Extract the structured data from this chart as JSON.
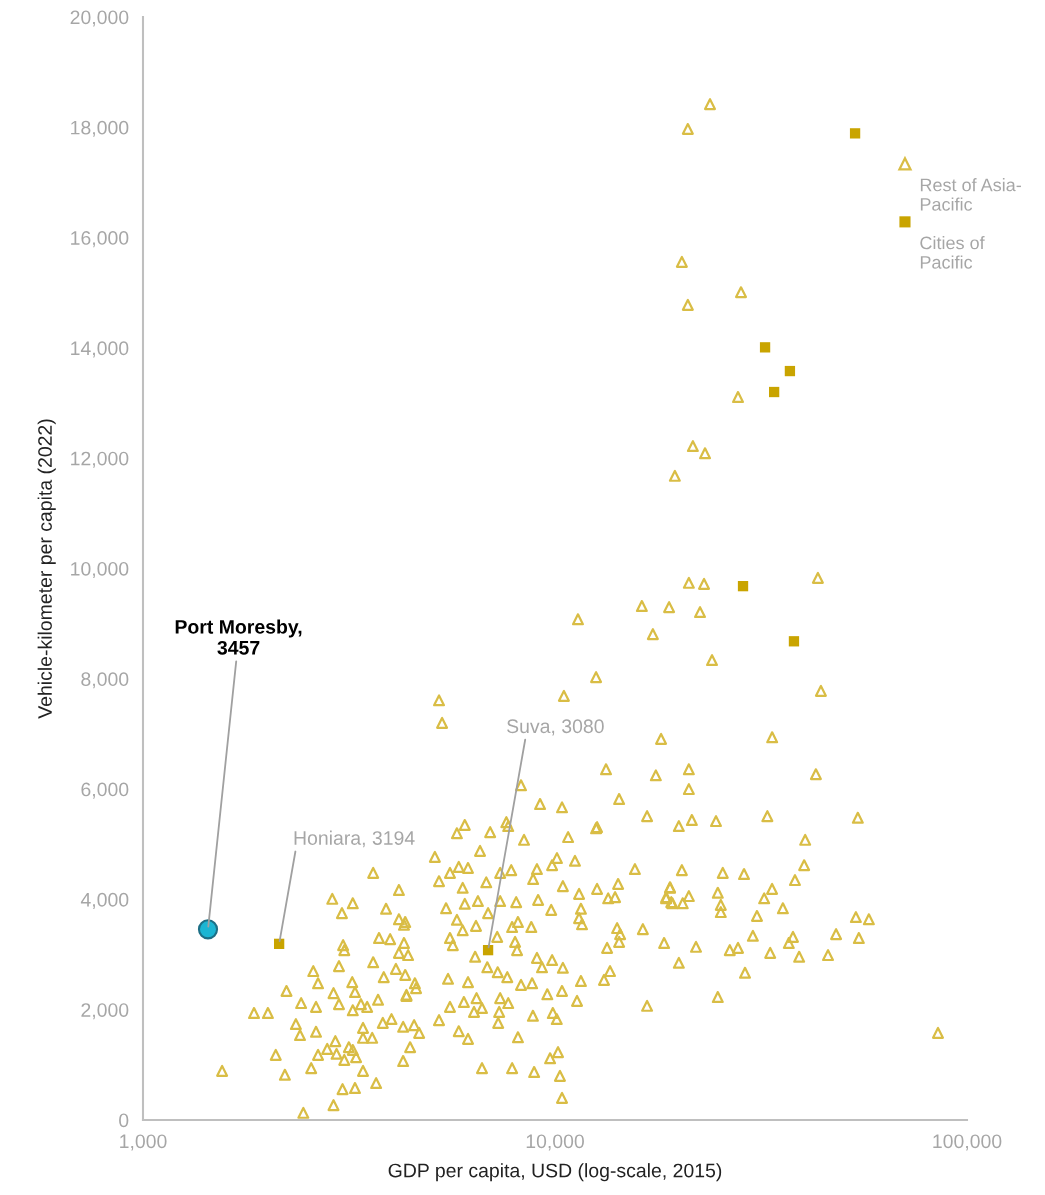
{
  "chart_data": {
    "type": "scatter",
    "xlabel": "GDP per capita, USD (log-scale, 2015)",
    "ylabel": "Vehicle-kilometer per capita (2022)",
    "log": "x",
    "xlim": [
      1000,
      100000
    ],
    "xticks": [
      {
        "value": 1000,
        "label": "1,000"
      },
      {
        "value": 10000,
        "label": "10,000"
      },
      {
        "value": 100000,
        "label": "100,000"
      }
    ],
    "ylim": [
      0,
      20000
    ],
    "yticks": [
      {
        "value": 0,
        "label": "0"
      },
      {
        "value": 2000,
        "label": "2,000"
      },
      {
        "value": 4000,
        "label": "4,000"
      },
      {
        "value": 6000,
        "label": "6,000"
      },
      {
        "value": 8000,
        "label": "8,000"
      },
      {
        "value": 10000,
        "label": "10,000"
      },
      {
        "value": 12000,
        "label": "12,000"
      },
      {
        "value": 14000,
        "label": "14,000"
      },
      {
        "value": 16000,
        "label": "16,000"
      },
      {
        "value": 18000,
        "label": "18,000"
      },
      {
        "value": 20000,
        "label": "20,000"
      }
    ],
    "grid": false,
    "legend": "top right",
    "series": [
      {
        "name": "Rest of Asia-Pacific",
        "color": "#d9bd45",
        "marker": "triangle",
        "x": [
          23780,
          21010,
          20320,
          28280,
          21010,
          27810,
          21610,
          23130,
          19540,
          11370,
          16250,
          18920,
          21130,
          23000,
          22490,
          43460,
          17280,
          24050,
          44200,
          10510,
          12580,
          5230,
          5320,
          18090,
          33660,
          13300,
          17570,
          21130,
          21130,
          42980,
          8270,
          9200,
          10400,
          14310,
          16730,
          19980,
          21490,
          24590,
          32770,
          54330,
          12580,
          6040,
          5780,
          6960,
          7620,
          7700,
          8410,
          10760,
          12650,
          40480,
          6577,
          5110,
          11180,
          10110,
          9840,
          9040,
          7830,
          6150,
          5840,
          5560,
          5230,
          5970,
          6810,
          7360,
          8850,
          10450,
          11440,
          12650,
          13460,
          14230,
          13990,
          15630,
          19020,
          18610,
          19150,
          5440,
          6040,
          6500,
          7360,
          8050,
          9100,
          9790,
          11560,
          11440,
          4330,
          5780,
          5970,
          6430,
          6880,
          7870,
          8130,
          8760,
          11630,
          14150,
          14390,
          16340,
          18400,
          5560,
          5650,
          6400,
          7240,
          8000,
          8090,
          9040,
          9300,
          9840,
          10450,
          13380,
          14310,
          13600,
          13150,
          11560,
          10400,
          9580,
          8800,
          8270,
          7660,
          7260,
          6850,
          6150,
          5500,
          4400,
          4360,
          5560,
          6010,
          6360,
          6650,
          6450,
          7360,
          7700,
          7320,
          7280,
          8840,
          9880,
          10100,
          11310,
          16730,
          5230,
          5840,
          6150,
          8130,
          4450,
          4280,
          6650,
          7870,
          8900,
          9730,
          10170,
          10280,
          10400,
          3620,
          4180,
          2880,
          3230,
          3040,
          3890,
          4180,
          4300,
          3060,
          3080,
          3740,
          3980,
          4300,
          4180,
          3620,
          2990,
          2590,
          2660,
          4110,
          4330,
          3840,
          4570,
          4600,
          4360,
          2230,
          2900,
          3220,
          3270,
          2420,
          2630,
          2990,
          3230,
          3380,
          3500,
          3720,
          1860,
          2010,
          2350,
          2405,
          2630,
          2930,
          2800,
          2950,
          3160,
          3230,
          3420,
          3420,
          3600,
          3820,
          4010,
          4280,
          4550,
          4680,
          2100,
          2660,
          3080,
          3290,
          3420,
          2560,
          2210,
          1556,
          3680,
          3050,
          3270,
          2900,
          2450,
          20320,
          25540,
          28760,
          40250,
          38230,
          19020,
          18610,
          19270,
          20420,
          21130,
          24840,
          25260,
          25260,
          32190,
          33640,
          35740,
          30920,
          53740,
          57790,
          21990,
          26560,
          27810,
          30220,
          33290,
          36940,
          37810,
          39140,
          45990,
          48110,
          54640,
          19980,
          28920,
          24840,
          85030
        ],
        "values": [
          18420,
          17970,
          15560,
          15010,
          14780,
          13110,
          12220,
          12090,
          11680,
          9080,
          9320,
          9300,
          9740,
          9720,
          9210,
          9830,
          8810,
          8340,
          7780,
          7690,
          8030,
          7610,
          7200,
          6910,
          6940,
          6360,
          6250,
          6360,
          6000,
          6270,
          6070,
          5730,
          5670,
          5820,
          5510,
          5330,
          5440,
          5420,
          5510,
          5480,
          5290,
          5350,
          5200,
          5220,
          5400,
          5330,
          5080,
          5130,
          5310,
          5080,
          4880,
          4770,
          4700,
          4750,
          4620,
          4550,
          4530,
          4570,
          4590,
          4480,
          4330,
          4210,
          4310,
          4480,
          4370,
          4240,
          4100,
          4190,
          4020,
          4280,
          4040,
          4550,
          4210,
          4020,
          3950,
          3840,
          3920,
          3970,
          3970,
          3950,
          3990,
          3810,
          3830,
          3660,
          3590,
          3630,
          3440,
          3520,
          3750,
          3500,
          3590,
          3500,
          3550,
          3480,
          3370,
          3460,
          3210,
          3300,
          3170,
          2960,
          3320,
          3230,
          3080,
          2940,
          2770,
          2900,
          2760,
          3120,
          3230,
          2700,
          2540,
          2520,
          2340,
          2280,
          2480,
          2450,
          2590,
          2680,
          2770,
          2500,
          2560,
          2990,
          2270,
          2050,
          2140,
          1960,
          2030,
          2210,
          2210,
          2120,
          1960,
          1760,
          1890,
          1940,
          1830,
          2160,
          2070,
          1810,
          1610,
          1470,
          1500,
          1320,
          1070,
          940,
          940,
          870,
          1120,
          1230,
          800,
          400,
          4480,
          4170,
          4010,
          3930,
          3750,
          3830,
          3640,
          3540,
          3170,
          3080,
          3300,
          3280,
          3210,
          3030,
          2860,
          2790,
          2700,
          2480,
          2740,
          2630,
          2590,
          2480,
          2390,
          2250,
          2340,
          2300,
          2500,
          2320,
          2120,
          2050,
          2100,
          1990,
          2100,
          2050,
          2180,
          1940,
          1940,
          1740,
          1540,
          1600,
          1430,
          1290,
          1200,
          1320,
          1270,
          1670,
          1490,
          1490,
          1760,
          1830,
          1690,
          1720,
          1580,
          1180,
          1180,
          1090,
          1140,
          890,
          940,
          820,
          890,
          670,
          560,
          580,
          270,
          130,
          4530,
          4480,
          4460,
          4620,
          4350,
          4220,
          4040,
          3930,
          3930,
          4060,
          4120,
          3900,
          3770,
          4020,
          4190,
          3840,
          3700,
          3680,
          3640,
          3140,
          3080,
          3120,
          3340,
          3030,
          3210,
          3320,
          2960,
          2990,
          3370,
          3300,
          2850,
          2670,
          2230,
          1580
        ]
      },
      {
        "name": "Cities of Pacific",
        "color": "#c9a400",
        "marker": "square",
        "x": [
          2140,
          6880,
          53500,
          32350,
          37170,
          34030,
          28600,
          38020
        ],
        "values": [
          3194,
          3080,
          17890,
          14010,
          13580,
          13200,
          9680,
          8680
        ]
      },
      {
        "color": "#1bb5d3",
        "marker": "circle",
        "x": [
          1438
        ],
        "values": [
          3457
        ]
      }
    ],
    "annotations": [
      {
        "text": "Port Moresby, 3457",
        "x": 1438,
        "y": 3457
      },
      {
        "text": "Honiara, 3194",
        "x": 2140,
        "y": 3194
      },
      {
        "text": "Suva, 3080",
        "x": 6880,
        "y": 3080
      }
    ]
  }
}
